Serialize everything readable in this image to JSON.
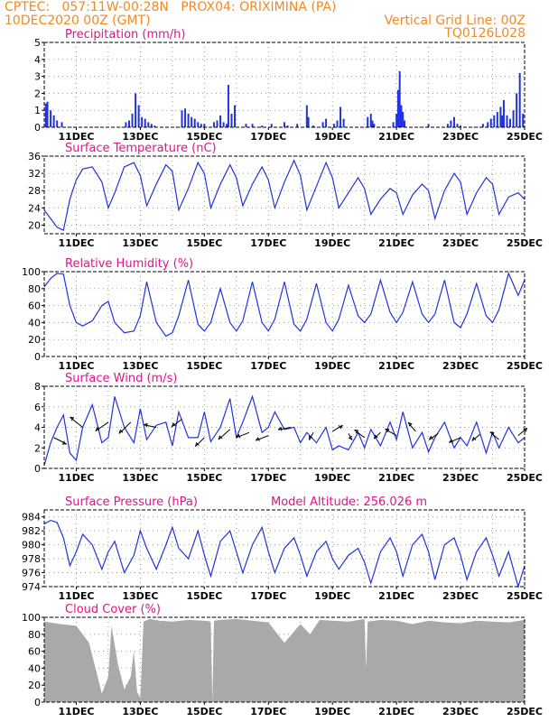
{
  "header": {
    "left_line1": "CPTEC:   057:11W-00:28N   PROX04: ORIXIMINA (PA)",
    "left_line2": "10DEC2020 00Z (GMT)",
    "right_line1": "Vertical Grid Line: 00Z",
    "right_line2": "TQ0126L028"
  },
  "colors": {
    "header": "#f08a24",
    "title": "#e0148c",
    "series": "#2233dd",
    "cloud": "#a9a9a9",
    "grid": "#9a9a9a"
  },
  "x_tick_labels": [
    "11DEC",
    "13DEC",
    "15DEC",
    "17DEC",
    "19DEC",
    "21DEC",
    "23DEC",
    "25DEC"
  ],
  "chart_data": [
    {
      "id": "precip",
      "type": "bar",
      "title": "Precipitation (mm/h)",
      "ylim": [
        0,
        5
      ],
      "yticks": [
        0,
        1,
        2,
        3,
        4,
        5
      ],
      "x_unit": "days since 10DEC2020 00Z",
      "xlim": [
        0,
        15
      ],
      "x": [
        0.05,
        0.1,
        0.2,
        0.3,
        0.4,
        0.55,
        2.55,
        2.65,
        2.75,
        2.85,
        2.95,
        3.05,
        3.15,
        3.25,
        3.35,
        3.45,
        4.3,
        4.4,
        4.5,
        4.6,
        4.7,
        4.8,
        4.9,
        5.0,
        5.3,
        5.4,
        5.5,
        5.6,
        5.7,
        5.75,
        5.85,
        5.95,
        6.3,
        6.5,
        6.8,
        7.1,
        7.5,
        7.6,
        7.9,
        8.2,
        8.25,
        8.4,
        8.7,
        8.8,
        9.05,
        9.15,
        9.25,
        9.35,
        10.1,
        10.2,
        10.25,
        10.3,
        10.9,
        11.0,
        11.05,
        11.1,
        11.15,
        11.2,
        11.25,
        12.0,
        12.6,
        12.7,
        12.8,
        12.9,
        13.0,
        13.7,
        13.85,
        13.95,
        14.05,
        14.15,
        14.25,
        14.3,
        14.35,
        14.45,
        14.55,
        14.65,
        14.75,
        14.85,
        14.95
      ],
      "values": [
        1.4,
        1.5,
        1.0,
        0.7,
        0.4,
        0.3,
        0.3,
        0.4,
        0.8,
        2.0,
        1.3,
        0.6,
        0.5,
        0.3,
        0.2,
        0.1,
        1.0,
        1.1,
        0.8,
        0.6,
        0.5,
        0.3,
        0.2,
        0.2,
        0.3,
        0.4,
        0.7,
        0.3,
        0.2,
        2.5,
        0.8,
        1.3,
        0.2,
        0.2,
        0.1,
        0.2,
        0.3,
        0.1,
        0.2,
        1.3,
        0.6,
        0.1,
        0.3,
        0.5,
        0.2,
        0.4,
        1.2,
        0.5,
        0.6,
        0.8,
        0.4,
        0.2,
        0.3,
        0.8,
        2.2,
        3.3,
        1.3,
        0.9,
        0.4,
        0.2,
        0.2,
        0.4,
        0.6,
        0.2,
        0.1,
        0.2,
        0.3,
        0.5,
        0.7,
        0.9,
        1.2,
        0.7,
        1.6,
        0.7,
        0.5,
        1.0,
        2.0,
        3.2,
        0.8
      ]
    },
    {
      "id": "temp",
      "type": "line",
      "title": "Surface Temperature (nC)",
      "ylim": [
        18,
        36
      ],
      "yticks": [
        20,
        24,
        28,
        32,
        36
      ],
      "x": [
        0,
        0.2,
        0.4,
        0.6,
        0.8,
        1.0,
        1.2,
        1.5,
        1.8,
        2.0,
        2.2,
        2.5,
        2.8,
        3.0,
        3.2,
        3.5,
        3.8,
        4.0,
        4.2,
        4.5,
        4.8,
        5.0,
        5.2,
        5.5,
        5.8,
        6.0,
        6.2,
        6.5,
        6.8,
        7.0,
        7.2,
        7.5,
        7.8,
        8.0,
        8.2,
        8.5,
        8.8,
        9.0,
        9.2,
        9.5,
        9.8,
        10.0,
        10.2,
        10.5,
        10.8,
        11.0,
        11.2,
        11.5,
        11.8,
        12.0,
        12.2,
        12.5,
        12.8,
        13.0,
        13.2,
        13.5,
        13.8,
        14.0,
        14.2,
        14.5,
        14.8,
        15.0
      ],
      "values": [
        23.5,
        21.5,
        19.5,
        18.8,
        26.0,
        30.5,
        33.0,
        33.5,
        30.0,
        24.0,
        27.5,
        33.5,
        34.5,
        31.5,
        24.5,
        29.5,
        34.0,
        32.5,
        23.5,
        28.5,
        34.5,
        32.0,
        24.0,
        29.5,
        34.0,
        31.0,
        24.5,
        29.5,
        33.5,
        30.5,
        24.0,
        30.0,
        35.0,
        31.5,
        23.5,
        29.0,
        34.5,
        31.0,
        24.0,
        27.5,
        31.0,
        28.5,
        22.5,
        26.0,
        28.5,
        27.5,
        22.5,
        27.0,
        29.5,
        28.0,
        21.5,
        28.0,
        32.0,
        30.0,
        22.5,
        27.5,
        31.0,
        29.5,
        22.5,
        26.5,
        27.5,
        26.0
      ]
    },
    {
      "id": "rh",
      "type": "line",
      "title": "Relative Humidity (%)",
      "ylim": [
        0,
        100
      ],
      "yticks": [
        0,
        20,
        40,
        60,
        80,
        100
      ],
      "x": [
        0,
        0.2,
        0.4,
        0.6,
        0.8,
        1.0,
        1.2,
        1.5,
        1.8,
        2.0,
        2.2,
        2.5,
        2.8,
        3.0,
        3.2,
        3.5,
        3.8,
        4.0,
        4.2,
        4.5,
        4.8,
        5.0,
        5.2,
        5.5,
        5.8,
        6.0,
        6.2,
        6.5,
        6.8,
        7.0,
        7.2,
        7.5,
        7.8,
        8.0,
        8.2,
        8.5,
        8.8,
        9.0,
        9.2,
        9.5,
        9.8,
        10.0,
        10.2,
        10.5,
        10.8,
        11.0,
        11.2,
        11.5,
        11.8,
        12.0,
        12.2,
        12.5,
        12.8,
        13.0,
        13.2,
        13.5,
        13.8,
        14.0,
        14.2,
        14.5,
        14.8,
        15.0
      ],
      "values": [
        82,
        92,
        98,
        97,
        60,
        40,
        36,
        42,
        60,
        65,
        40,
        28,
        30,
        48,
        88,
        40,
        24,
        28,
        48,
        90,
        38,
        30,
        40,
        80,
        40,
        30,
        42,
        88,
        40,
        30,
        44,
        88,
        38,
        30,
        44,
        86,
        40,
        30,
        44,
        84,
        48,
        40,
        50,
        90,
        52,
        40,
        52,
        88,
        50,
        40,
        50,
        90,
        40,
        34,
        50,
        86,
        48,
        40,
        55,
        98,
        72,
        90
      ]
    },
    {
      "id": "wind",
      "type": "line",
      "title": "Surface Wind (m/s)",
      "ylim": [
        0,
        8
      ],
      "yticks": [
        0,
        2,
        4,
        6,
        8
      ],
      "x": [
        0,
        0.2,
        0.4,
        0.6,
        0.8,
        1.0,
        1.2,
        1.5,
        1.8,
        2.0,
        2.2,
        2.5,
        2.8,
        3.0,
        3.2,
        3.5,
        3.8,
        4.0,
        4.2,
        4.5,
        4.8,
        5.0,
        5.2,
        5.5,
        5.8,
        6.0,
        6.2,
        6.5,
        6.8,
        7.0,
        7.2,
        7.5,
        7.8,
        8.0,
        8.2,
        8.5,
        8.8,
        9.0,
        9.2,
        9.5,
        9.8,
        10.0,
        10.2,
        10.5,
        10.8,
        11.0,
        11.2,
        11.5,
        11.8,
        12.0,
        12.2,
        12.5,
        12.8,
        13.0,
        13.2,
        13.5,
        13.8,
        14.0,
        14.2,
        14.5,
        14.8,
        15.0
      ],
      "values": [
        0.3,
        2.5,
        4.0,
        5.2,
        1.5,
        0.8,
        4.0,
        6.2,
        2.5,
        3.0,
        7.0,
        4.0,
        2.5,
        5.8,
        2.8,
        4.2,
        4.5,
        2.2,
        5.5,
        3.0,
        3.0,
        5.5,
        2.6,
        4.0,
        6.8,
        3.0,
        4.5,
        7.0,
        3.5,
        4.0,
        5.5,
        3.8,
        4.0,
        2.5,
        3.5,
        2.5,
        4.0,
        1.8,
        2.2,
        1.8,
        3.5,
        2.0,
        3.8,
        2.2,
        4.5,
        2.8,
        5.5,
        2.0,
        3.5,
        1.6,
        3.0,
        4.5,
        2.0,
        3.0,
        2.2,
        4.5,
        1.5,
        3.5,
        2.0,
        4.0,
        2.5,
        3.0
      ],
      "arrows": {
        "x": [
          0.3,
          1.2,
          2.0,
          2.7,
          3.5,
          4.3,
          5.0,
          5.8,
          6.4,
          7.0,
          7.7,
          8.4,
          9.0,
          9.5,
          10.0,
          10.5,
          11.0,
          11.6,
          12.3,
          13.0,
          13.6,
          14.2,
          14.8
        ],
        "y": [
          3.0,
          4.0,
          4.5,
          4.5,
          4.0,
          4.8,
          3.0,
          3.8,
          3.5,
          3.2,
          4.0,
          3.5,
          3.6,
          3.4,
          3.0,
          3.5,
          3.2,
          3.6,
          3.4,
          3.0,
          3.3,
          2.8,
          3.2
        ],
        "u": [
          1.0,
          -1.0,
          -1.0,
          -0.9,
          -1.0,
          -0.8,
          -0.7,
          -0.9,
          -1.0,
          -1.0,
          -1.0,
          -0.3,
          0.8,
          0.3,
          -0.8,
          -0.5,
          -0.9,
          -0.6,
          -0.7,
          -0.9,
          -0.6,
          -0.7,
          0.7
        ],
        "v": [
          -0.5,
          0.8,
          -0.7,
          -0.9,
          0.2,
          -0.6,
          -0.7,
          -0.8,
          -0.4,
          -0.4,
          -0.2,
          -0.6,
          0.5,
          -0.5,
          0.6,
          -0.5,
          0.5,
          0.7,
          -0.5,
          -0.4,
          -0.5,
          0.6,
          0.6
        ]
      }
    },
    {
      "id": "pressure",
      "type": "line",
      "title": "Surface Pressure (hPa)",
      "annotation": "Model Altitude: 256.026 m",
      "ylim": [
        974,
        985
      ],
      "yticks": [
        974,
        976,
        978,
        980,
        982,
        984
      ],
      "x": [
        0,
        0.2,
        0.4,
        0.6,
        0.8,
        1.0,
        1.2,
        1.5,
        1.8,
        2.0,
        2.2,
        2.5,
        2.8,
        3.0,
        3.2,
        3.5,
        3.8,
        4.0,
        4.2,
        4.5,
        4.8,
        5.0,
        5.2,
        5.5,
        5.8,
        6.0,
        6.2,
        6.5,
        6.8,
        7.0,
        7.2,
        7.5,
        7.8,
        8.0,
        8.2,
        8.5,
        8.8,
        9.0,
        9.2,
        9.5,
        9.8,
        10.0,
        10.2,
        10.5,
        10.8,
        11.0,
        11.2,
        11.5,
        11.8,
        12.0,
        12.2,
        12.5,
        12.8,
        13.0,
        13.2,
        13.5,
        13.8,
        14.0,
        14.2,
        14.5,
        14.8,
        15.0
      ],
      "values": [
        983.0,
        983.5,
        983.2,
        981.0,
        977.0,
        979.0,
        981.5,
        980.0,
        976.5,
        979.0,
        980.5,
        976.0,
        978.5,
        982.0,
        979.5,
        976.5,
        980.0,
        982.5,
        979.5,
        978.0,
        982.0,
        978.5,
        975.5,
        980.5,
        982.0,
        979.0,
        976.0,
        980.0,
        982.5,
        979.0,
        976.0,
        979.5,
        981.0,
        978.5,
        975.5,
        979.0,
        980.5,
        978.0,
        976.5,
        978.5,
        979.5,
        977.5,
        974.5,
        979.0,
        981.0,
        979.0,
        975.5,
        980.0,
        981.5,
        979.0,
        975.0,
        980.0,
        981.0,
        978.5,
        975.0,
        979.0,
        981.0,
        978.5,
        975.5,
        979.0,
        974.0,
        977.0
      ]
    },
    {
      "id": "cloud",
      "type": "area",
      "title": "Cloud Cover (%)",
      "ylim": [
        0,
        100
      ],
      "yticks": [
        0,
        20,
        40,
        60,
        80,
        100
      ],
      "x": [
        0,
        0.5,
        1.0,
        1.4,
        1.6,
        1.8,
        2.0,
        2.1,
        2.3,
        2.5,
        2.7,
        2.8,
        2.9,
        3.0,
        3.1,
        3.3,
        3.6,
        4.0,
        4.5,
        5.0,
        5.2,
        5.25,
        5.3,
        5.5,
        6.0,
        6.5,
        7.0,
        7.5,
        8.0,
        8.3,
        8.6,
        9.0,
        9.5,
        10.0,
        10.05,
        10.1,
        10.5,
        11.0,
        11.5,
        12.0,
        12.5,
        13.0,
        13.5,
        14.0,
        14.5,
        15.0
      ],
      "values": [
        95,
        92,
        90,
        70,
        40,
        10,
        30,
        90,
        45,
        15,
        30,
        60,
        12,
        5,
        95,
        98,
        96,
        95,
        97,
        96,
        95,
        0,
        96,
        97,
        98,
        96,
        94,
        70,
        92,
        80,
        97,
        96,
        95,
        98,
        40,
        95,
        97,
        96,
        92,
        96,
        94,
        93,
        96,
        95,
        94,
        97
      ]
    }
  ]
}
